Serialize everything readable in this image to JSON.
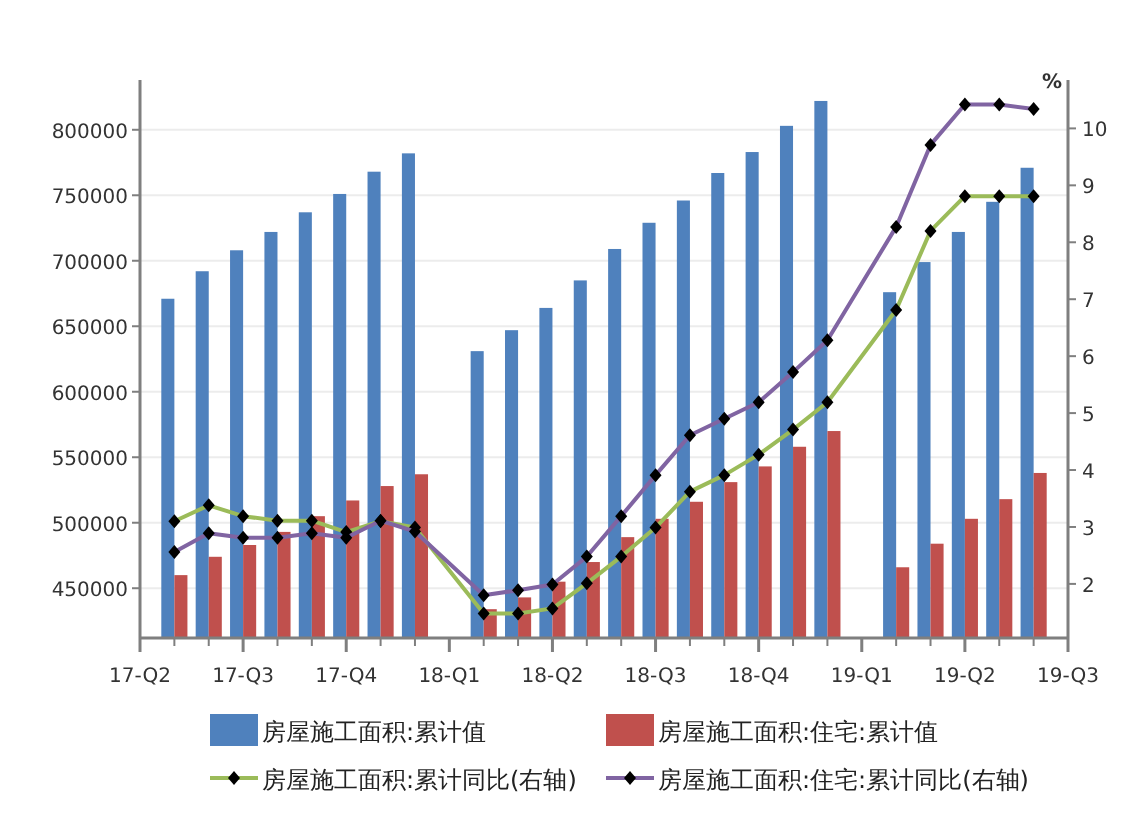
{
  "chart_data": {
    "type": "bar",
    "legend": "bottom",
    "grid": "y",
    "marker": "diamond",
    "y2label": "%",
    "categories": [
      "17-Q2",
      null,
      null,
      "17-Q3",
      null,
      null,
      "17-Q4",
      null,
      null,
      "18-Q1",
      null,
      null,
      "18-Q2",
      null,
      null,
      "18-Q3",
      null,
      null,
      "18-Q4",
      null,
      null,
      "19-Q1",
      null,
      null,
      "19-Q2",
      null,
      null,
      "19-Q3"
    ],
    "ylim": [
      412000,
      838000
    ],
    "yticks": [
      450000,
      500000,
      550000,
      600000,
      650000,
      700000,
      750000,
      800000
    ],
    "y2lim": [
      1.05,
      10.85
    ],
    "y2ticks": [
      2,
      3,
      4,
      5,
      6,
      7,
      8,
      9,
      10
    ],
    "series": [
      {
        "name": "房屋施工面积:累计值",
        "color": "#4f81bd",
        "values": [
          null,
          671000,
          692000,
          708000,
          722000,
          737000,
          751000,
          768000,
          782000,
          null,
          631000,
          647000,
          664000,
          685000,
          709000,
          729000,
          746000,
          767000,
          783000,
          803000,
          822000,
          null,
          676000,
          699000,
          722000,
          745000,
          771000,
          null
        ]
      },
      {
        "name": "房屋施工面积:住宅:累计值",
        "color": "#c0504d",
        "values": [
          null,
          460000,
          474000,
          483000,
          493000,
          505000,
          517000,
          528000,
          537000,
          null,
          434000,
          443000,
          455000,
          470000,
          489000,
          503000,
          516000,
          531000,
          543000,
          558000,
          570000,
          null,
          466000,
          484000,
          503000,
          518000,
          538000,
          null
        ]
      },
      {
        "name": "房屋施工面积:累计同比(右轴)",
        "type": "line",
        "axis": "y2",
        "color": "#9bbb59",
        "values": [
          null,
          3.1,
          3.38,
          3.19,
          3.11,
          3.11,
          2.91,
          3.1,
          2.99,
          null,
          1.48,
          1.48,
          1.57,
          2.01,
          2.48,
          2.99,
          3.62,
          3.91,
          4.27,
          4.71,
          5.19,
          null,
          6.81,
          8.2,
          8.81,
          8.81,
          8.81,
          null
        ]
      },
      {
        "name": "房屋施工面积:住宅:累计同比(右轴)",
        "type": "line",
        "axis": "y2",
        "color": "#8064a2",
        "values": [
          null,
          2.56,
          2.89,
          2.81,
          2.81,
          2.89,
          2.81,
          3.11,
          2.92,
          null,
          1.8,
          1.89,
          1.99,
          2.48,
          3.19,
          3.91,
          4.61,
          4.9,
          5.19,
          5.72,
          6.28,
          null,
          8.27,
          9.71,
          10.42,
          10.42,
          10.34,
          null
        ]
      }
    ]
  }
}
